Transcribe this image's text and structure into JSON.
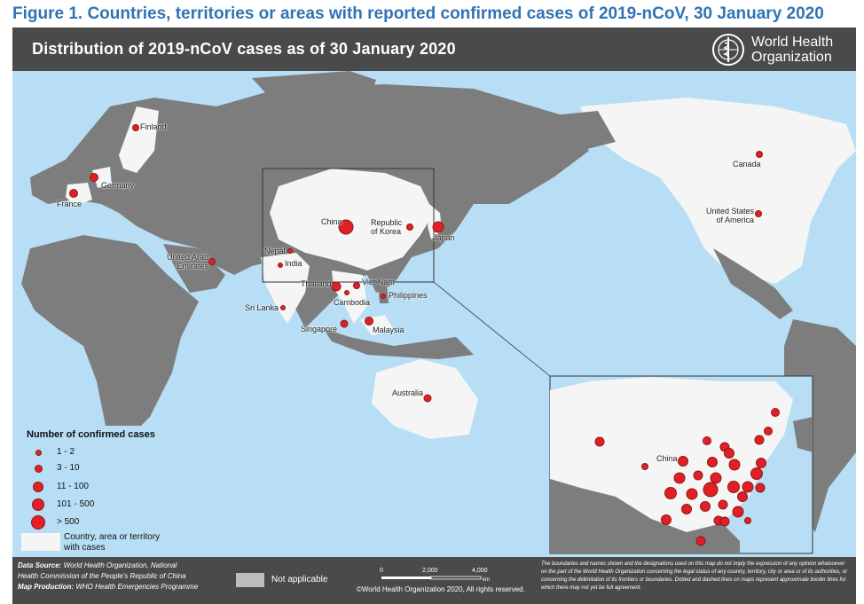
{
  "figure_title": "Figure 1. Countries, territories or areas with reported confirmed cases of 2019-nCoV, 30 January 2020",
  "map_title": "Distribution of 2019-nCoV cases as of 30 January 2020",
  "logo": {
    "line1": "World Health",
    "line2": "Organization",
    "icon": "who-emblem-icon"
  },
  "colors": {
    "ocean": "#b7def5",
    "land": "#7d7d7d",
    "case_land": "#f5f5f5",
    "not_applicable": "#bdbdbd",
    "marker": "#e21f26",
    "banner": "#4a4a4a"
  },
  "country_labels": [
    {
      "name": "Finland"
    },
    {
      "name": "Germany"
    },
    {
      "name": "France"
    },
    {
      "name": "United Arab Emirates"
    },
    {
      "name": "Nepal"
    },
    {
      "name": "India"
    },
    {
      "name": "Sri Lanka"
    },
    {
      "name": "China"
    },
    {
      "name": "Republic of Korea"
    },
    {
      "name": "Japan"
    },
    {
      "name": "Thailand"
    },
    {
      "name": "Viet Nam"
    },
    {
      "name": "Cambodia"
    },
    {
      "name": "Philippines"
    },
    {
      "name": "Singapore"
    },
    {
      "name": "Malaysia"
    },
    {
      "name": "Australia"
    },
    {
      "name": "Canada"
    },
    {
      "name": "United States of America"
    }
  ],
  "inset": {
    "label": "China"
  },
  "legend": {
    "title": "Number of confirmed cases",
    "classes": [
      "1 - 2",
      "3 - 10",
      "11 - 100",
      "101 - 500",
      "> 500"
    ],
    "swatch_label": "Country, area or territory with cases"
  },
  "footer": {
    "source_label": "Data Source:",
    "source_text": "World Health Organization, National",
    "source_text2": "Health Commission of the People's Republic of China",
    "production_label": "Map Production:",
    "production_text": "WHO Health Emergencies Programme",
    "not_applicable": "Not applicable",
    "scale": {
      "t0": "0",
      "t1": "2,000",
      "t2": "4,000",
      "unit": "km"
    },
    "copyright": "©World Health Organization 2020, All rights reserved.",
    "disclaimer": "The boundaries and names shown and the designations used on this map do not imply the expression of any opinion whatsoever on the part of the World Health Organization concerning the legal status of any country, territory, city or area or of its authorities, or concerning the delimitation of its frontiers or boundaries. Dotted and dashed lines on maps represent approximate border lines for which there may not yet be full agreement."
  }
}
